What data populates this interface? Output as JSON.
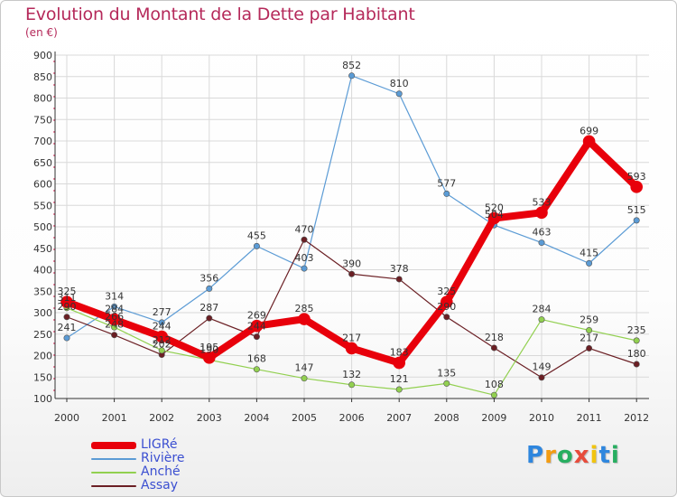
{
  "colors": {
    "title": "#b5295a",
    "grid": "#d9d9d9",
    "axis": "#333333",
    "legend_text": "#3b4fd1"
  },
  "chart_data": {
    "type": "line",
    "title": "Evolution du Montant de la Dette par Habitant",
    "subtitle": "(en €)",
    "xlabel": "",
    "ylabel": "",
    "x": [
      "2000",
      "2001",
      "2002",
      "2003",
      "2004",
      "2005",
      "2006",
      "2007",
      "2008",
      "2009",
      "2010",
      "2011",
      "2012"
    ],
    "ylim": [
      100,
      900
    ],
    "yticks": [
      100,
      150,
      200,
      250,
      300,
      350,
      400,
      450,
      500,
      550,
      600,
      650,
      700,
      750,
      800,
      850,
      900
    ],
    "grid": true,
    "legend_position": "bottom-left",
    "series": [
      {
        "name": "LIGRé",
        "color": "#e8000b",
        "width": 8,
        "values": [
          325,
          284,
          244,
          195,
          269,
          285,
          217,
          183,
          325,
          520,
          533,
          699,
          593
        ]
      },
      {
        "name": "Rivière",
        "color": "#5b9bd5",
        "width": 1.2,
        "values": [
          241,
          314,
          277,
          356,
          455,
          403,
          852,
          810,
          577,
          504,
          463,
          415,
          515
        ]
      },
      {
        "name": "Anché",
        "color": "#92d050",
        "width": 1.2,
        "values": [
          311,
          266,
          212,
          190,
          168,
          147,
          132,
          121,
          135,
          108,
          284,
          259,
          235
        ]
      },
      {
        "name": "Assay",
        "color": "#6b1f24",
        "width": 1.2,
        "values": [
          290,
          248,
          202,
          287,
          244,
          470,
          390,
          378,
          290,
          218,
          149,
          217,
          180
        ]
      }
    ],
    "label_values": [
      [
        325,
        284,
        244,
        195,
        269,
        285,
        217,
        183,
        325,
        520,
        533,
        699,
        593
      ],
      [
        241,
        314,
        277,
        356,
        455,
        403,
        852,
        810,
        577,
        504,
        463,
        415,
        515
      ],
      [
        311,
        266,
        212,
        190,
        168,
        147,
        132,
        121,
        135,
        108,
        284,
        259,
        235
      ],
      [
        290,
        248,
        202,
        287,
        244,
        470,
        390,
        378,
        290,
        218,
        149,
        217,
        180
      ]
    ]
  },
  "logo": {
    "letters": [
      "P",
      "r",
      "o",
      "x",
      "i",
      "t",
      "i"
    ],
    "colors": [
      "#2e86de",
      "#f39c12",
      "#27ae60",
      "#e74c3c",
      "#f1c40f",
      "#2e86de",
      "#27ae60"
    ]
  }
}
